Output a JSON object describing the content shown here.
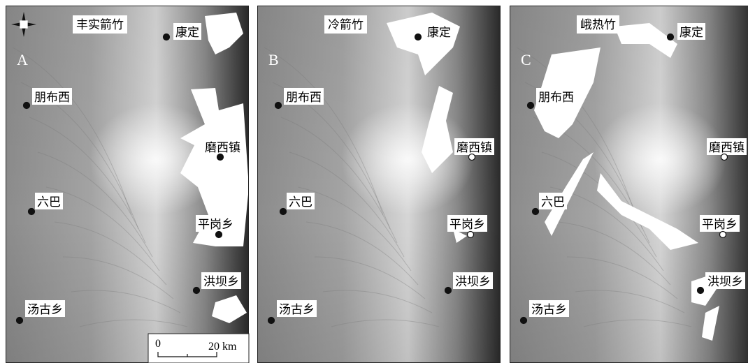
{
  "panels": [
    {
      "letter": "A",
      "species": "丰实箭竹",
      "places": [
        "康定",
        "朋布西",
        "磨西镇",
        "六巴",
        "平岗乡",
        "洪坝乡",
        "汤古乡"
      ]
    },
    {
      "letter": "B",
      "species": "冷箭竹",
      "places": [
        "康定",
        "朋布西",
        "磨西镇",
        "六巴",
        "平岗乡",
        "洪坝乡",
        "汤古乡"
      ]
    },
    {
      "letter": "C",
      "species": "峨热竹",
      "places": [
        "康定",
        "朋布西",
        "磨西镇",
        "六巴",
        "平岗乡",
        "洪坝乡",
        "汤古乡"
      ]
    }
  ],
  "scale_bar": {
    "start": "0",
    "end": "20 km"
  }
}
